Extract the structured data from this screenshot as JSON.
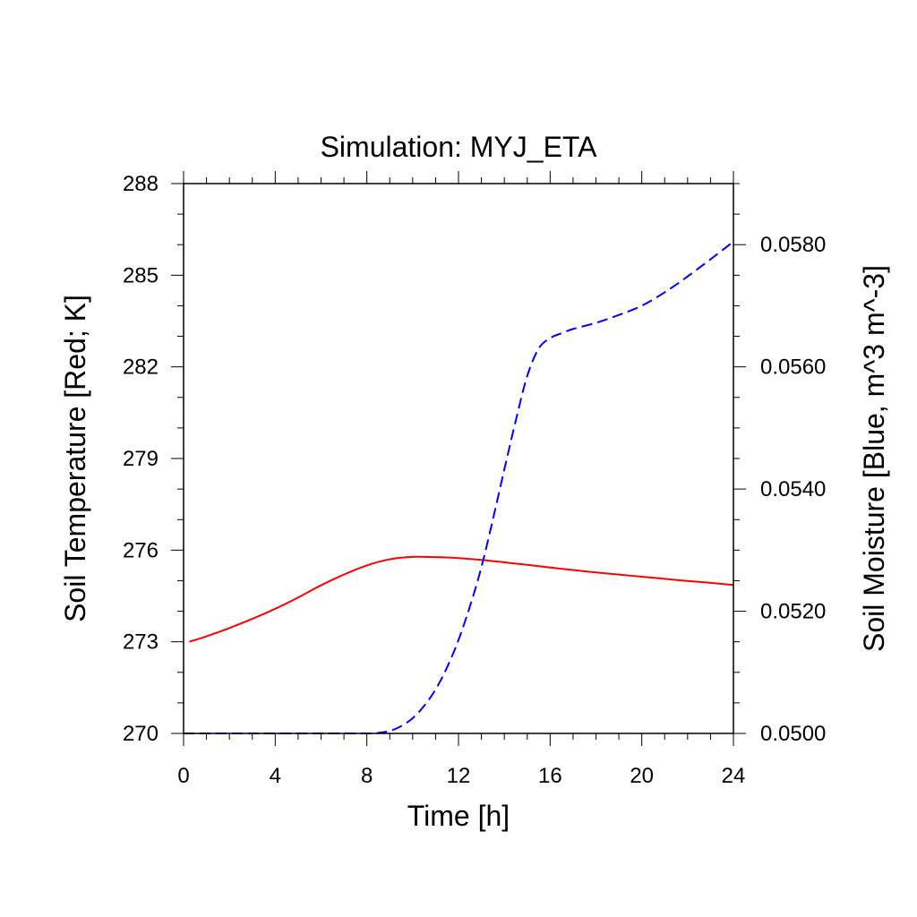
{
  "chart_data": {
    "type": "line",
    "title": "Simulation: MYJ_ETA",
    "xlabel": "Time [h]",
    "ylabel_left": "Soil Temperature [Red; K]",
    "ylabel_right": "Soil Moisture [Blue, m^3 m^-3]",
    "xlim": [
      0,
      24
    ],
    "ylim_left": [
      270,
      288
    ],
    "ylim_right": [
      0.05,
      0.059
    ],
    "x_ticks": [
      "0",
      "4",
      "8",
      "12",
      "16",
      "20",
      "24"
    ],
    "y_left_ticks": [
      "270",
      "273",
      "276",
      "279",
      "282",
      "285",
      "288"
    ],
    "y_right_ticks": [
      "0.0500",
      "0.0520",
      "0.0540",
      "0.0560",
      "0.0580"
    ],
    "grid": false,
    "series": [
      {
        "axis": "left",
        "color": "#ff0000",
        "style": "solid",
        "points": [
          [
            0.25,
            273.0
          ],
          [
            1,
            273.18
          ],
          [
            2,
            273.45
          ],
          [
            3,
            273.75
          ],
          [
            4,
            274.08
          ],
          [
            5,
            274.45
          ],
          [
            6,
            274.85
          ],
          [
            7,
            275.2
          ],
          [
            8,
            275.5
          ],
          [
            9,
            275.7
          ],
          [
            10,
            275.78
          ],
          [
            11,
            275.77
          ],
          [
            12,
            275.74
          ],
          [
            13,
            275.68
          ],
          [
            14,
            275.6
          ],
          [
            15,
            275.52
          ],
          [
            16,
            275.43
          ],
          [
            17,
            275.35
          ],
          [
            18,
            275.27
          ],
          [
            19,
            275.2
          ],
          [
            20,
            275.13
          ],
          [
            21,
            275.06
          ],
          [
            22,
            274.99
          ],
          [
            23,
            274.93
          ],
          [
            24,
            274.86
          ]
        ]
      },
      {
        "axis": "right",
        "color": "#0000ff",
        "style": "dashed",
        "points": [
          [
            0,
            0.05
          ],
          [
            4,
            0.05
          ],
          [
            8,
            0.05
          ],
          [
            8.5,
            0.05001
          ],
          [
            9,
            0.05004
          ],
          [
            9.5,
            0.05012
          ],
          [
            10,
            0.05025
          ],
          [
            10.5,
            0.05045
          ],
          [
            11,
            0.05072
          ],
          [
            11.5,
            0.05108
          ],
          [
            12,
            0.05153
          ],
          [
            12.5,
            0.05208
          ],
          [
            13,
            0.05272
          ],
          [
            13.5,
            0.0535
          ],
          [
            14,
            0.05432
          ],
          [
            14.5,
            0.05512
          ],
          [
            15,
            0.05585
          ],
          [
            15.5,
            0.0563
          ],
          [
            16,
            0.05647
          ],
          [
            16.5,
            0.05655
          ],
          [
            17,
            0.05662
          ],
          [
            18,
            0.05672
          ],
          [
            19,
            0.05685
          ],
          [
            20,
            0.057
          ],
          [
            21,
            0.05722
          ],
          [
            22,
            0.05748
          ],
          [
            23,
            0.05776
          ],
          [
            24,
            0.05805
          ]
        ]
      }
    ]
  }
}
